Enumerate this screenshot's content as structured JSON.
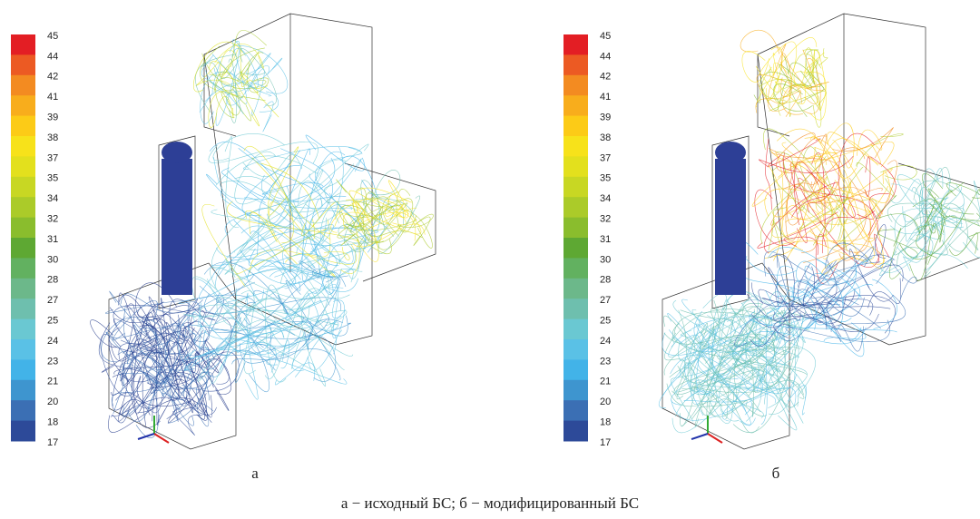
{
  "panels": [
    {
      "legend": {
        "labels": [
          45,
          44,
          42,
          41,
          39,
          38,
          37,
          35,
          34,
          32,
          31,
          30,
          28,
          27,
          25,
          24,
          23,
          21,
          20,
          18,
          17
        ],
        "colors": [
          "#e31e24",
          "#ec5a23",
          "#f38b21",
          "#f8ad1c",
          "#fccb17",
          "#f7e21a",
          "#e3e01d",
          "#c8d723",
          "#abcb29",
          "#8abd2d",
          "#5ea833",
          "#62b160",
          "#6cb88a",
          "#6ebfae",
          "#6ac8d2",
          "#5ac1e6",
          "#42b3e8",
          "#3e95cf",
          "#3b6fb4",
          "#2d4a99"
        ]
      },
      "label": "а"
    },
    {
      "legend": {
        "labels": [
          45,
          44,
          42,
          41,
          39,
          38,
          37,
          35,
          34,
          32,
          31,
          30,
          28,
          27,
          25,
          24,
          23,
          21,
          20,
          18,
          17
        ],
        "colors": [
          "#e31e24",
          "#ec5a23",
          "#f38b21",
          "#f8ad1c",
          "#fccb17",
          "#f7e21a",
          "#e3e01d",
          "#c8d723",
          "#abcb29",
          "#8abd2d",
          "#5ea833",
          "#62b160",
          "#6cb88a",
          "#6ebfae",
          "#6ac8d2",
          "#5ac1e6",
          "#42b3e8",
          "#3e95cf",
          "#3b6fb4",
          "#2d4a99"
        ]
      },
      "label": "б"
    }
  ],
  "caption": "а − исходный БС; б − модифицированный БС"
}
